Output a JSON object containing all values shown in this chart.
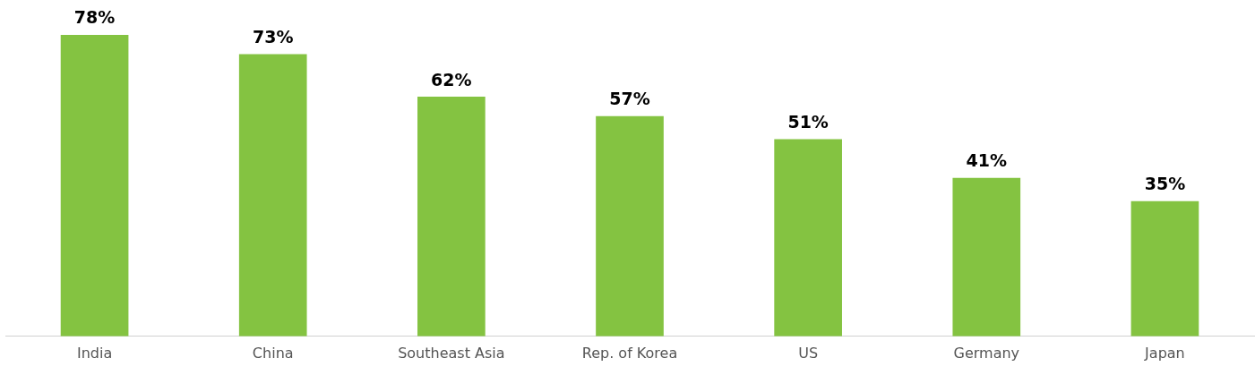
{
  "chart_data": {
    "type": "bar",
    "categories": [
      "India",
      "China",
      "Southeast Asia",
      "Rep. of Korea",
      "US",
      "Germany",
      "Japan"
    ],
    "values": [
      78,
      73,
      62,
      57,
      51,
      41,
      35
    ],
    "color": "#84c341",
    "value_labels": [
      "78%",
      "73%",
      "62%",
      "57%",
      "51%",
      "41%",
      "35%"
    ],
    "grid": false,
    "legend": false,
    "tick_labels": "x"
  }
}
